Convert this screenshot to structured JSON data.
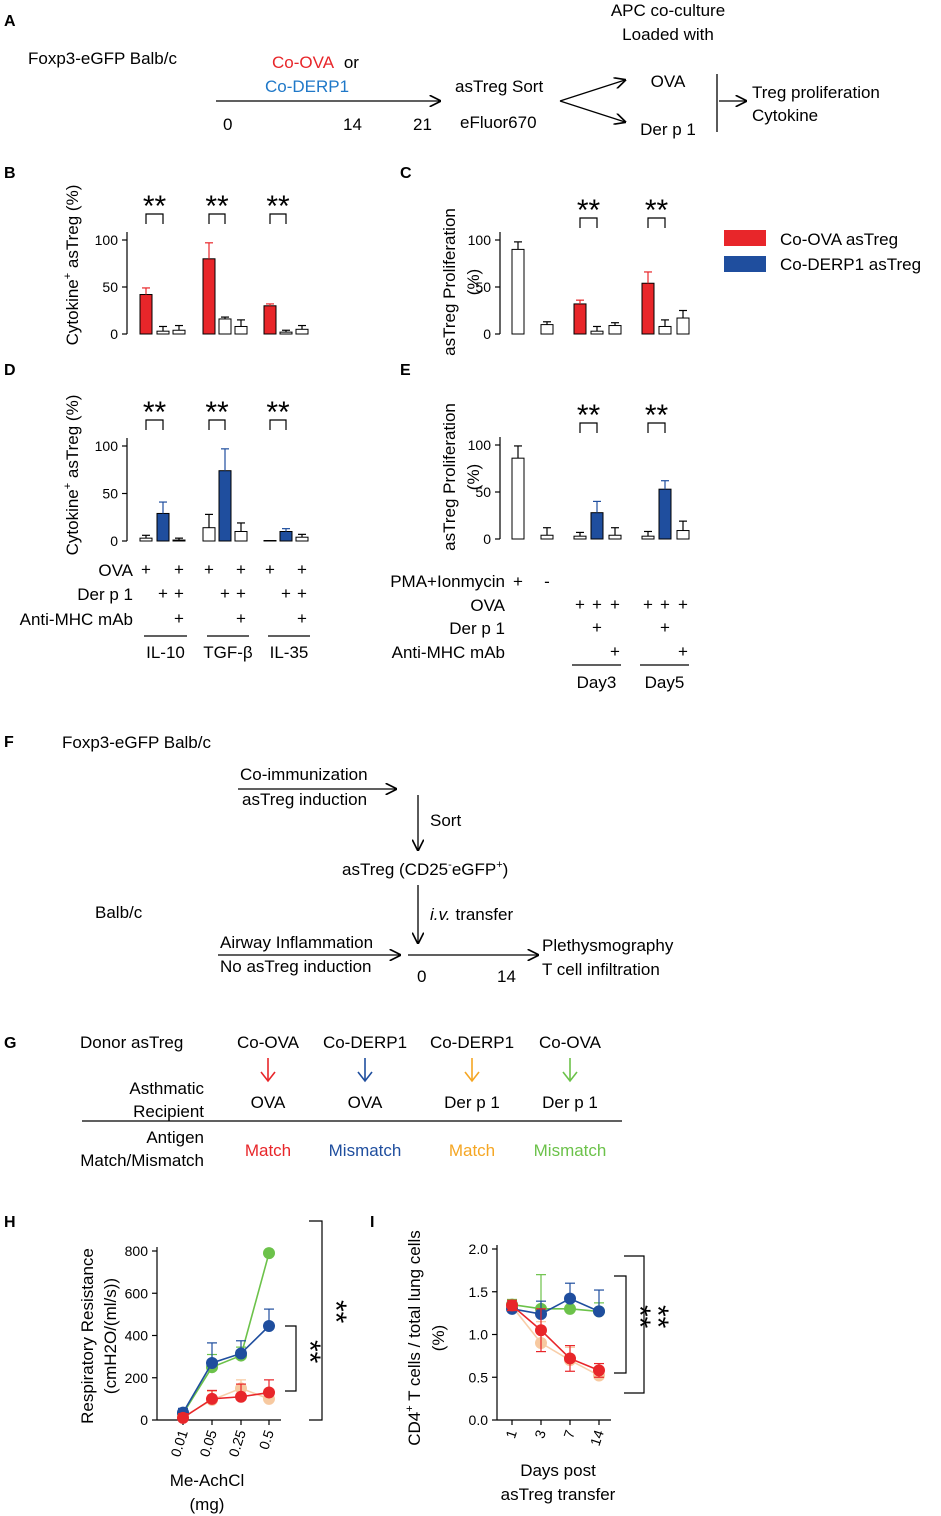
{
  "colors": {
    "red": "#e8262a",
    "blue": "#1f4e9e",
    "orange": "#f5a623",
    "green": "#6cc24a",
    "light_orange": "#f7c9a0"
  },
  "panels": {
    "A": {
      "letter": "A",
      "mouse_label": "Foxp3-eGFP Balb/c",
      "immunization": [
        "Co-OVA",
        "or",
        "Co-DERP1"
      ],
      "timeline": [
        "0",
        "14",
        "21"
      ],
      "sort": "asTreg Sort",
      "dye": "eFluor670",
      "apc_title": [
        "APC co-culture",
        "Loaded with"
      ],
      "antigens": [
        "OVA",
        "Der p 1"
      ],
      "readouts": [
        "Treg proliferation",
        "Cytokine"
      ]
    },
    "F": {
      "letter": "F",
      "donor_mouse": "Foxp3-eGFP Balb/c",
      "donor_steps": [
        "Co-immunization",
        "asTreg induction"
      ],
      "sort": "Sort",
      "product": [
        "asTreg (CD25",
        "-",
        "eGFP",
        "+",
        ")"
      ],
      "recipient_mouse": "Balb/c",
      "recipient_steps": [
        "Airway Inflammation",
        "No asTreg induction"
      ],
      "transfer": [
        "i.v.",
        "transfer"
      ],
      "timeline": [
        "0",
        "14"
      ],
      "readouts": [
        "Plethysmography",
        "T cell infiltration"
      ]
    },
    "G": {
      "letter": "G",
      "row1": "Donor asTreg",
      "row2": [
        "Asthmatic",
        "Recipient"
      ],
      "row3": [
        "Antigen",
        "Match/Mismatch"
      ],
      "columns": [
        {
          "donor": "Co-OVA",
          "recipient": "OVA",
          "match": "Match",
          "color": "#e8262a"
        },
        {
          "donor": "Co-DERP1",
          "recipient": "OVA",
          "match": "Mismatch",
          "color": "#1f4e9e"
        },
        {
          "donor": "Co-DERP1",
          "recipient": "Der p 1",
          "match": "Match",
          "color": "#f5a623"
        },
        {
          "donor": "Co-OVA",
          "recipient": "Der p 1",
          "match": "Mismatch",
          "color": "#6cc24a"
        }
      ]
    }
  },
  "legend": [
    {
      "label": "Co-OVA asTreg",
      "color": "#e8262a"
    },
    {
      "label": "Co-DERP1 asTreg",
      "color": "#1f4e9e"
    }
  ],
  "chart_data": [
    {
      "panel": "B",
      "type": "bar",
      "ylabel": [
        "Cytokine",
        "+",
        " asTreg (%)"
      ],
      "ylim": [
        0,
        100
      ],
      "yticks": [
        "0",
        "50",
        "100"
      ],
      "groups": [
        "IL-10",
        "TGF-β",
        "IL-35"
      ],
      "bars": [
        {
          "value": 42,
          "err": 7,
          "fill": "red"
        },
        {
          "value": 3,
          "err": 5,
          "fill": "white"
        },
        {
          "value": 4,
          "err": 5,
          "fill": "white"
        },
        {
          "value": 80,
          "err": 17,
          "fill": "red"
        },
        {
          "value": 16,
          "err": 2,
          "fill": "white"
        },
        {
          "value": 8,
          "err": 7,
          "fill": "white"
        },
        {
          "value": 30,
          "err": 2,
          "fill": "red"
        },
        {
          "value": 2,
          "err": 2,
          "fill": "white"
        },
        {
          "value": 5,
          "err": 4,
          "fill": "white"
        }
      ],
      "significance": [
        "**",
        "**",
        "**"
      ]
    },
    {
      "panel": "C",
      "type": "bar",
      "ylabel": [
        "asTreg Proliferation",
        "(%)"
      ],
      "ylim": [
        0,
        100
      ],
      "yticks": [
        "0",
        "50",
        "100"
      ],
      "groups": [
        "PMA+Ionmycin",
        "Day3",
        "Day5"
      ],
      "bars": [
        {
          "value": 90,
          "err": 8,
          "fill": "white"
        },
        {
          "value": 10,
          "err": 3,
          "fill": "white"
        },
        {
          "value": 32,
          "err": 4,
          "fill": "red"
        },
        {
          "value": 3,
          "err": 5,
          "fill": "white"
        },
        {
          "value": 9,
          "err": 3,
          "fill": "white"
        },
        {
          "value": 54,
          "err": 12,
          "fill": "red"
        },
        {
          "value": 8,
          "err": 7,
          "fill": "white"
        },
        {
          "value": 17,
          "err": 8,
          "fill": "white"
        }
      ],
      "significance": [
        "**",
        "**"
      ]
    },
    {
      "panel": "D",
      "type": "bar",
      "ylabel": [
        "Cytokine",
        "+",
        " asTreg (%)"
      ],
      "ylim": [
        0,
        100
      ],
      "yticks": [
        "0",
        "50",
        "100"
      ],
      "groups": [
        "IL-10",
        "TGF-β",
        "IL-35"
      ],
      "bars": [
        {
          "value": 3,
          "err": 3,
          "fill": "white"
        },
        {
          "value": 29,
          "err": 12,
          "fill": "blue"
        },
        {
          "value": 1,
          "err": 2,
          "fill": "white"
        },
        {
          "value": 14,
          "err": 14,
          "fill": "white"
        },
        {
          "value": 74,
          "err": 23,
          "fill": "blue"
        },
        {
          "value": 10,
          "err": 9,
          "fill": "white"
        },
        {
          "value": 0,
          "err": 0,
          "fill": "white"
        },
        {
          "value": 10,
          "err": 3,
          "fill": "blue"
        },
        {
          "value": 4,
          "err": 3,
          "fill": "white"
        }
      ],
      "significance": [
        "**",
        "**",
        "**"
      ],
      "conditions": {
        "labels": [
          "OVA",
          "Der p 1",
          "Anti-MHC mAb"
        ],
        "rows": [
          [
            "+",
            "",
            "+"
          ],
          [
            "",
            "+",
            "+"
          ],
          [
            "",
            "",
            "+"
          ]
        ]
      }
    },
    {
      "panel": "E",
      "type": "bar",
      "ylabel": [
        "asTreg Proliferation",
        "(%)"
      ],
      "ylim": [
        0,
        100
      ],
      "yticks": [
        "0",
        "50",
        "100"
      ],
      "groups": [
        "Day3",
        "Day5"
      ],
      "bars": [
        {
          "value": 86,
          "err": 13,
          "fill": "white"
        },
        {
          "value": 4,
          "err": 8,
          "fill": "white"
        },
        {
          "value": 3,
          "err": 4,
          "fill": "white"
        },
        {
          "value": 28,
          "err": 12,
          "fill": "blue"
        },
        {
          "value": 4,
          "err": 8,
          "fill": "white"
        },
        {
          "value": 3,
          "err": 5,
          "fill": "white"
        },
        {
          "value": 53,
          "err": 9,
          "fill": "blue"
        },
        {
          "value": 9,
          "err": 10,
          "fill": "white"
        }
      ],
      "significance": [
        "**",
        "**"
      ],
      "conditions": {
        "labels": [
          "PMA+Ionmycin",
          "OVA",
          "Der p 1",
          "Anti-MHC mAb"
        ],
        "pma": [
          "+",
          "-"
        ],
        "rows": [
          [
            "+",
            "+",
            "+"
          ],
          [
            "",
            "+",
            ""
          ],
          [
            "",
            "",
            "+"
          ]
        ]
      }
    },
    {
      "panel": "H",
      "type": "line",
      "xlabel": [
        "Me-AchCl",
        "(mg)"
      ],
      "ylabel": [
        "Respiratory Resistance",
        "(cmH2O/(ml/s))"
      ],
      "x": [
        "0.01",
        "0.05",
        "0.25",
        "0.5"
      ],
      "ylim": [
        0,
        800
      ],
      "yticks": [
        "0",
        "200",
        "400",
        "600",
        "800"
      ],
      "series": [
        {
          "color": "#e8262a",
          "values": [
            10,
            100,
            110,
            130
          ],
          "err": [
            20,
            40,
            60,
            60
          ]
        },
        {
          "color": "#1f4e9e",
          "values": [
            35,
            270,
            315,
            445
          ],
          "err": [
            20,
            95,
            60,
            80
          ]
        },
        {
          "color": "#f5a623",
          "values": [
            15,
            95,
            150,
            100
          ],
          "err": [
            15,
            40,
            40,
            40
          ]
        },
        {
          "color": "#6cc24a",
          "values": [
            30,
            250,
            305,
            790
          ],
          "err": [
            20,
            60,
            40,
            0
          ]
        }
      ],
      "significance": [
        "**",
        "**"
      ]
    },
    {
      "panel": "I",
      "type": "line",
      "xlabel": [
        "Days post",
        "asTreg transfer"
      ],
      "ylabel": [
        "CD4",
        "+",
        " T cells / total lung cells",
        "(%)"
      ],
      "x": [
        "1",
        "3",
        "7",
        "14"
      ],
      "ylim": [
        0,
        2
      ],
      "yticks": [
        "0.0",
        "0.5",
        "1.0",
        "1.5",
        "2.0"
      ],
      "series": [
        {
          "color": "#e8262a",
          "values": [
            1.34,
            1.05,
            0.72,
            0.58
          ],
          "err": [
            0.06,
            0.25,
            0.15,
            0.08
          ]
        },
        {
          "color": "#1f4e9e",
          "values": [
            1.3,
            1.24,
            1.42,
            1.27
          ],
          "err": [
            0.08,
            0.15,
            0.18,
            0.25
          ]
        },
        {
          "color": "#f5a623",
          "values": [
            1.33,
            0.9,
            0.7,
            0.52
          ],
          "err": [
            0.06,
            0.25,
            0.15,
            0.08
          ]
        },
        {
          "color": "#6cc24a",
          "values": [
            1.35,
            1.3,
            1.3,
            1.27
          ],
          "err": [
            0.06,
            0.4,
            0.1,
            0.1
          ]
        }
      ],
      "significance": [
        "**",
        "**"
      ]
    }
  ]
}
